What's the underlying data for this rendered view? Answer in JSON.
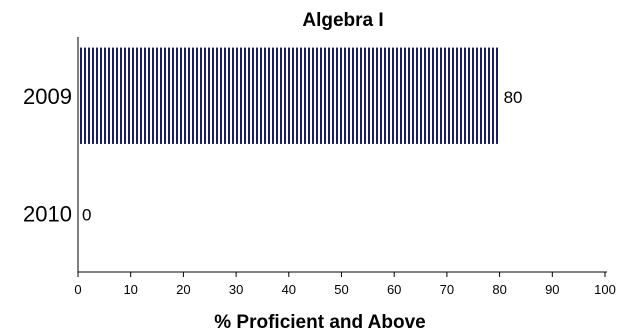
{
  "chart_data": {
    "type": "bar",
    "orientation": "horizontal",
    "title": "Algebra I",
    "xlabel": "% Proficient and Above",
    "ylabel": "",
    "categories": [
      "2009",
      "2010"
    ],
    "values": [
      80,
      0
    ],
    "data_labels": [
      "80",
      "0"
    ],
    "xlim": [
      0,
      100
    ],
    "x_ticks": [
      "0",
      "10",
      "20",
      "30",
      "40",
      "50",
      "60",
      "70",
      "80",
      "90",
      "100"
    ],
    "bar_color": "#1a1a6e",
    "bar_pattern": "vertical-stripes",
    "grid": false,
    "legend": "none"
  }
}
